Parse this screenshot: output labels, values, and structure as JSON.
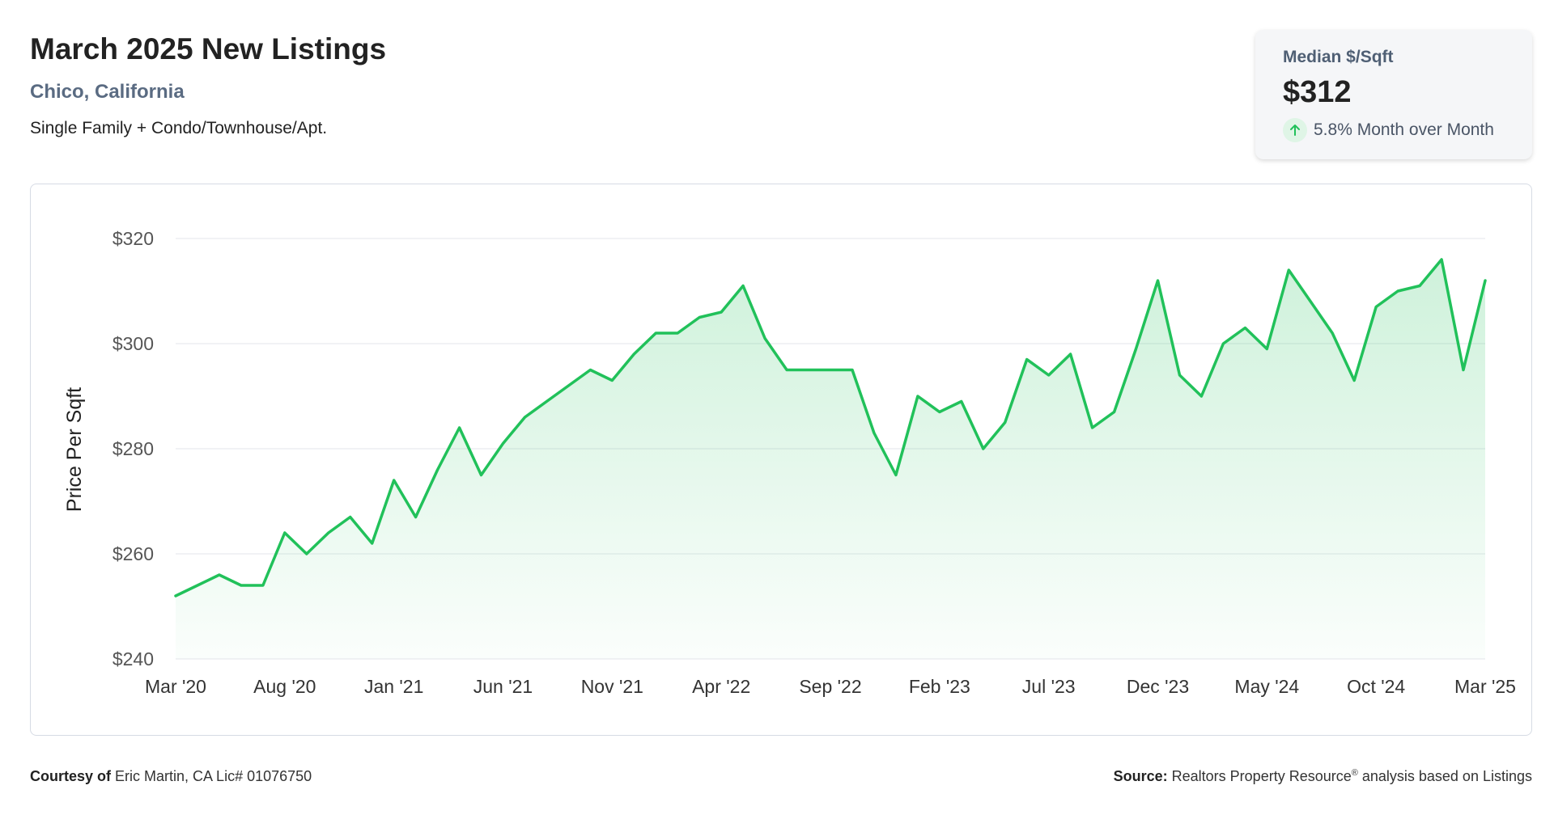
{
  "header": {
    "title": "March 2025 New Listings",
    "location": "Chico, California",
    "property_type": "Single Family + Condo/Townhouse/Apt."
  },
  "stat_card": {
    "label": "Median $/Sqft",
    "value": "$312",
    "change": "5.8% Month over Month",
    "direction_icon": "arrow-up-icon",
    "accent_color": "#21c15a"
  },
  "chart_data": {
    "type": "area",
    "title": "",
    "xlabel": "",
    "ylabel": "Price Per Sqft",
    "ylim": [
      240,
      320
    ],
    "yticks": [
      "$240",
      "$260",
      "$280",
      "$300",
      "$320"
    ],
    "ytick_values": [
      240,
      260,
      280,
      300,
      320
    ],
    "xtick_labels": [
      "Mar '20",
      "Aug '20",
      "Jan '21",
      "Jun '21",
      "Nov '21",
      "Apr '22",
      "Sep '22",
      "Feb '23",
      "Jul '23",
      "Dec '23",
      "May '24",
      "Oct '24",
      "Mar '25"
    ],
    "grid": true,
    "line_color": "#21c15a",
    "series": [
      {
        "values": [
          252,
          254,
          256,
          254,
          254,
          264,
          260,
          264,
          267,
          262,
          274,
          267,
          276,
          284,
          275,
          281,
          286,
          289,
          292,
          295,
          293,
          298,
          302,
          302,
          305,
          306,
          311,
          301,
          295,
          295,
          295,
          295,
          283,
          275,
          290,
          287,
          289,
          280,
          285,
          297,
          294,
          298,
          284,
          287,
          299,
          312,
          294,
          290,
          300,
          303,
          299,
          314,
          308,
          302,
          293,
          307,
          310,
          311,
          316,
          295,
          312
        ]
      }
    ]
  },
  "footer": {
    "courtesy_label": "Courtesy of",
    "courtesy_text": "Eric Martin, CA Lic# 01076750",
    "source_label": "Source:",
    "source_text": "Realtors Property Resource",
    "source_sup": "®",
    "source_suffix": "analysis based on Listings"
  }
}
